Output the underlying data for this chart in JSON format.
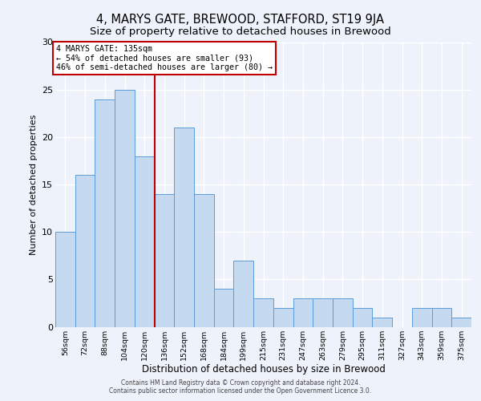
{
  "title": "4, MARYS GATE, BREWOOD, STAFFORD, ST19 9JA",
  "subtitle": "Size of property relative to detached houses in Brewood",
  "xlabel": "Distribution of detached houses by size in Brewood",
  "ylabel": "Number of detached properties",
  "bar_labels": [
    "56sqm",
    "72sqm",
    "88sqm",
    "104sqm",
    "120sqm",
    "136sqm",
    "152sqm",
    "168sqm",
    "184sqm",
    "199sqm",
    "215sqm",
    "231sqm",
    "247sqm",
    "263sqm",
    "279sqm",
    "295sqm",
    "311sqm",
    "327sqm",
    "343sqm",
    "359sqm",
    "375sqm"
  ],
  "bar_values": [
    10,
    16,
    24,
    25,
    18,
    14,
    21,
    14,
    4,
    7,
    3,
    2,
    3,
    3,
    3,
    2,
    1,
    0,
    2,
    2,
    1
  ],
  "bar_color": "#c5d9f1",
  "bar_edge_color": "#5b9bd5",
  "vline_x": 4.5,
  "vline_color": "#c00000",
  "annotation_line1": "4 MARYS GATE: 135sqm",
  "annotation_line2": "← 54% of detached houses are smaller (93)",
  "annotation_line3": "46% of semi-detached houses are larger (80) →",
  "annotation_box_color": "#c00000",
  "ylim": [
    0,
    30
  ],
  "footer_line1": "Contains HM Land Registry data © Crown copyright and database right 2024.",
  "footer_line2": "Contains public sector information licensed under the Open Government Licence 3.0.",
  "bg_color": "#eef2fb",
  "grid_color": "#ffffff",
  "title_fontsize": 10.5,
  "subtitle_fontsize": 9.5
}
